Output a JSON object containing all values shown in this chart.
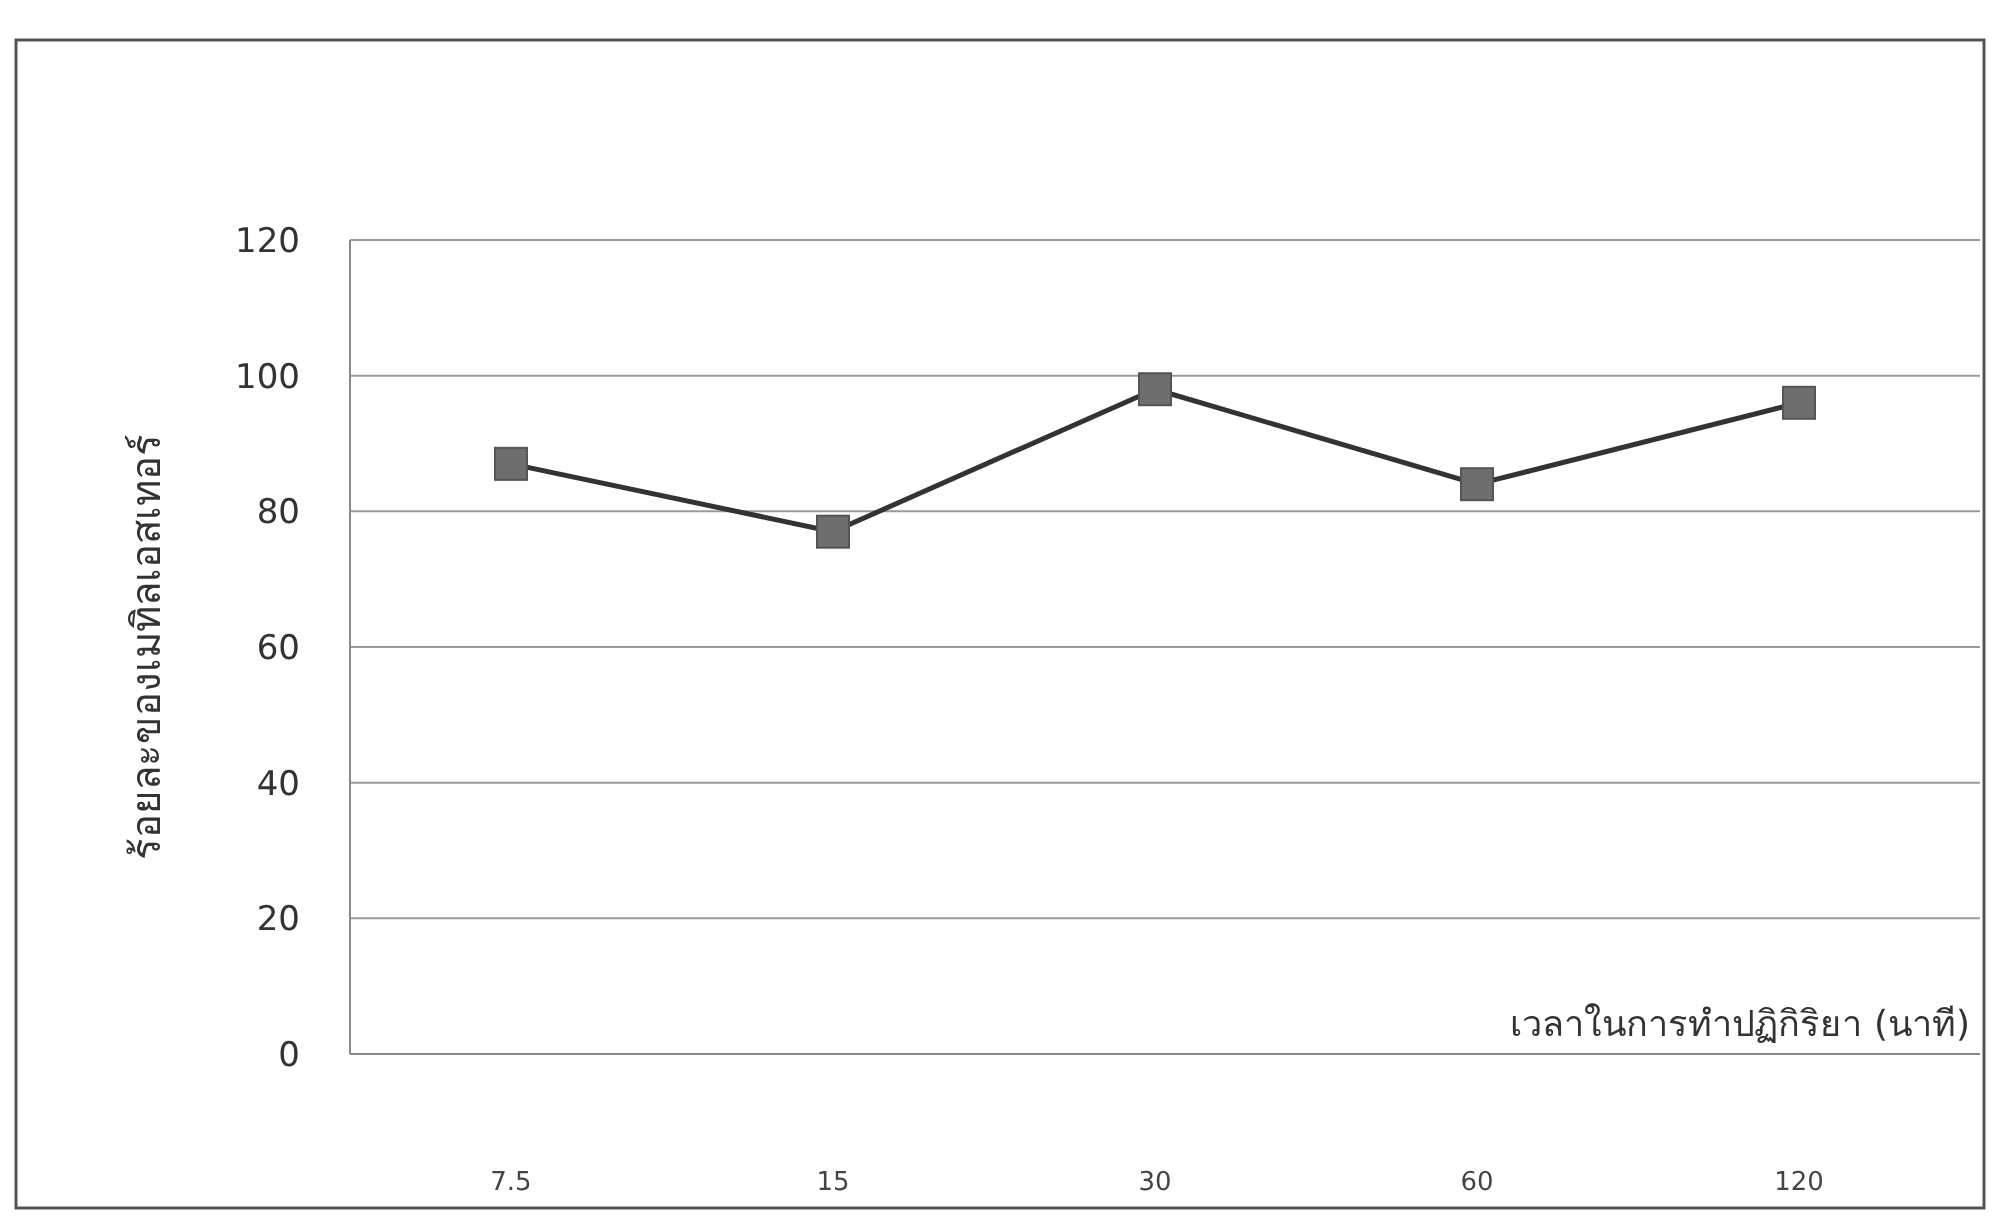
{
  "chart_data": {
    "type": "line",
    "xlabel": "เวลาในการทำปฏิกิริยา (นาที)",
    "ylabel": "ร้อยละของเมทิลเอสเทอร์",
    "categories": [
      "7.5",
      "15",
      "30",
      "60",
      "120"
    ],
    "series": [
      {
        "color": "#6e6e6e",
        "values": [
          87,
          77,
          98,
          84,
          96
        ]
      }
    ],
    "ylim": [
      0,
      120
    ],
    "yticks": [
      0,
      20,
      40,
      60,
      80,
      100,
      120
    ],
    "grid": "y",
    "marker": "square"
  }
}
